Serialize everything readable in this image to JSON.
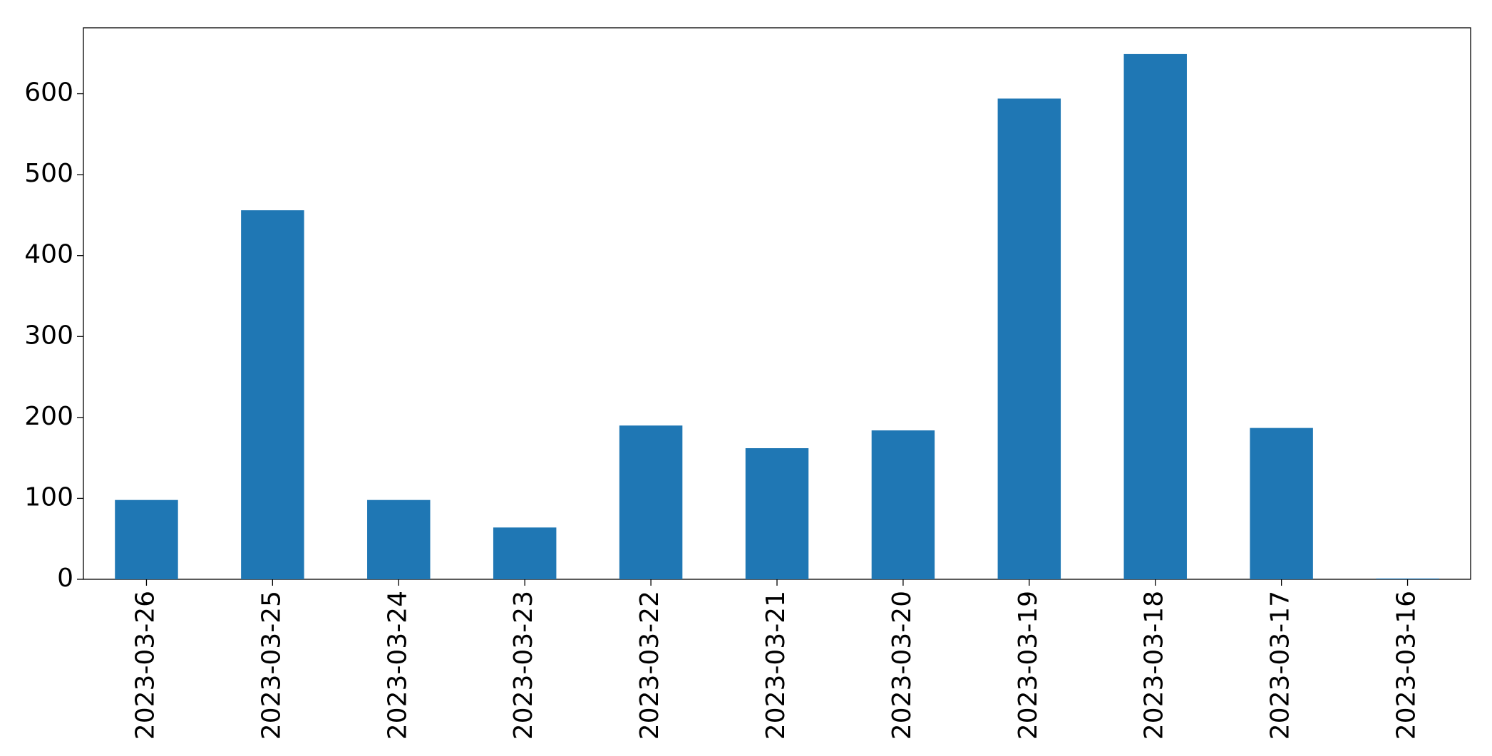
{
  "chart_data": {
    "type": "bar",
    "categories": [
      "2023-03-26",
      "2023-03-25",
      "2023-03-24",
      "2023-03-23",
      "2023-03-22",
      "2023-03-21",
      "2023-03-20",
      "2023-03-19",
      "2023-03-18",
      "2023-03-17",
      "2023-03-16"
    ],
    "values": [
      98,
      456,
      98,
      64,
      190,
      162,
      184,
      594,
      649,
      187,
      1
    ],
    "color": "#1f77b4",
    "ylim": [
      0,
      681.5
    ],
    "yticks": [
      0,
      100,
      200,
      300,
      400,
      500,
      600
    ],
    "grid": false
  }
}
